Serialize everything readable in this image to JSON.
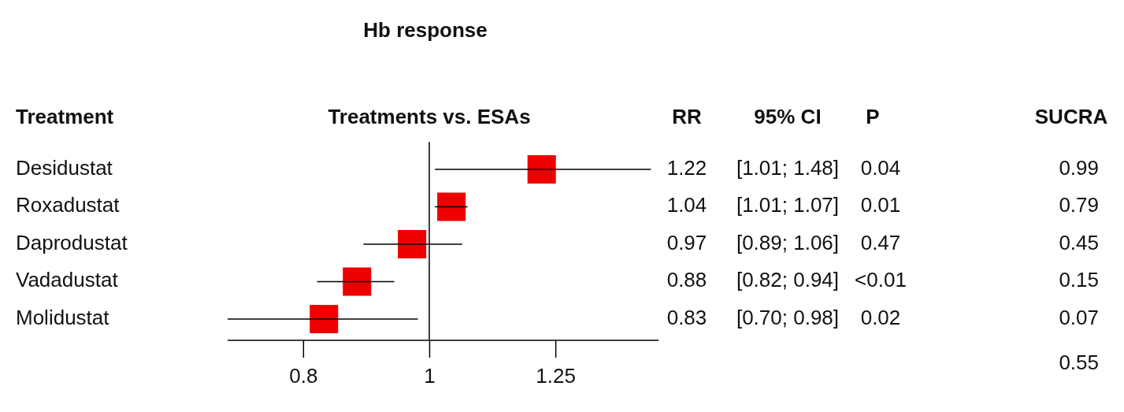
{
  "chart_data": {
    "type": "scatter",
    "orientation": "horizontal",
    "title": "Hb response",
    "ylabel": "Treatment",
    "xlabel": "Treatments vs. ESAs",
    "categories": [
      "Desidustat",
      "Roxadustat",
      "Daprodustat",
      "Vadadustat",
      "Molidustat"
    ],
    "values": [
      1.22,
      1.04,
      0.97,
      0.88,
      0.83
    ],
    "errors": [
      [
        1.01,
        1.48
      ],
      [
        1.01,
        1.07
      ],
      [
        0.89,
        1.06
      ],
      [
        0.82,
        0.94
      ],
      [
        0.7,
        0.98
      ]
    ],
    "color": "#ee0000",
    "marker": "square",
    "log": "x",
    "xlim": [
      0.7,
      1.5
    ],
    "xticks": [
      0.8,
      1,
      1.25
    ],
    "ref_lines": [
      {
        "axis": "x",
        "value": 1
      }
    ],
    "data_labels": true,
    "annotations": [
      "RR",
      "95% CI",
      "P",
      "SUCRA",
      "[1.01; 1.48]",
      "0.04",
      "0.99",
      "[1.01; 1.07]",
      "0.01",
      "0.79",
      "[0.89; 1.06]",
      "0.47",
      "0.45",
      "[0.82; 0.94]",
      "<0.01",
      "0.15",
      "[0.70; 0.98]",
      "0.02",
      "0.07",
      "0.55"
    ]
  }
}
